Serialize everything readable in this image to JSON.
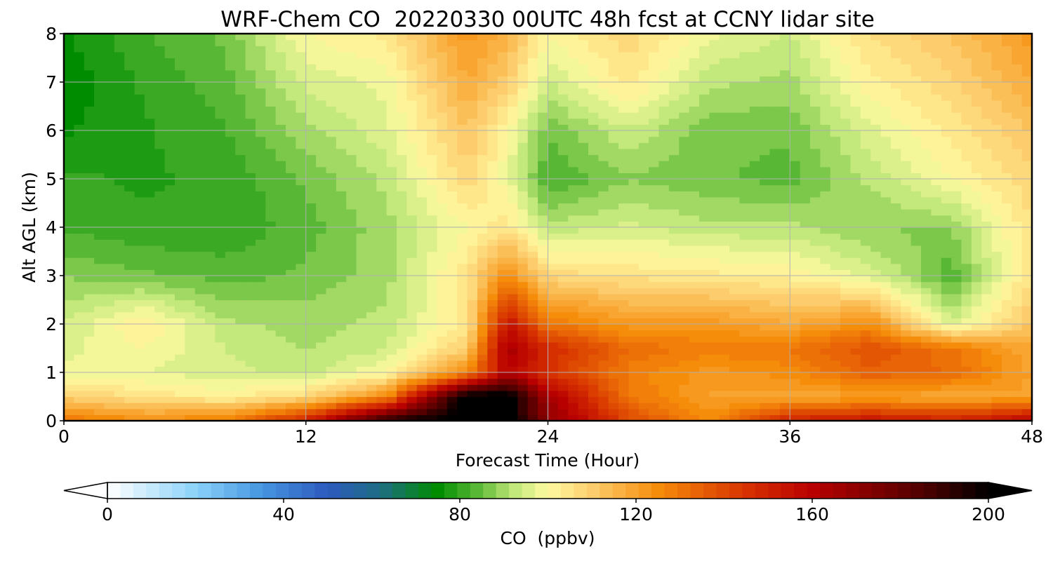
{
  "chart_data": {
    "type": "heatmap",
    "title": "WRF-Chem CO  20220330 00UTC 48h fcst at CCNY lidar site",
    "xlabel": "Forecast Time (Hour)",
    "ylabel": "Alt AGL (km)",
    "xlim": [
      0,
      48
    ],
    "ylim": [
      0,
      8
    ],
    "xticks": [
      0,
      12,
      24,
      36,
      48
    ],
    "yticks": [
      0,
      1,
      2,
      3,
      4,
      5,
      6,
      7,
      8
    ],
    "grid": true,
    "colorbar": {
      "label": "CO  (ppbv)",
      "range": [
        0,
        200
      ],
      "ticks": [
        0,
        40,
        80,
        120,
        160,
        200
      ],
      "extend": "both",
      "orientation": "horizontal",
      "position": "bottom"
    },
    "x": [
      0,
      4,
      8,
      12,
      16,
      20,
      22,
      24,
      28,
      32,
      36,
      40,
      44,
      48
    ],
    "y": [
      0,
      0.5,
      1,
      1.5,
      2,
      3,
      4,
      5,
      6,
      7,
      8
    ],
    "z": [
      [
        130,
        125,
        128,
        150,
        195,
        205,
        205,
        170,
        140,
        125,
        150,
        155,
        150,
        160
      ],
      [
        110,
        105,
        102,
        108,
        125,
        205,
        205,
        165,
        130,
        120,
        118,
        120,
        118,
        120
      ],
      [
        98,
        97,
        95,
        93,
        100,
        125,
        160,
        145,
        128,
        122,
        125,
        135,
        132,
        120
      ],
      [
        96,
        100,
        94,
        91,
        94,
        110,
        165,
        148,
        132,
        128,
        130,
        138,
        130,
        118
      ],
      [
        94,
        103,
        92,
        90,
        92,
        104,
        155,
        130,
        122,
        122,
        118,
        125,
        95,
        112
      ],
      [
        88,
        86,
        84,
        86,
        90,
        105,
        125,
        108,
        105,
        104,
        102,
        96,
        83,
        106
      ],
      [
        82,
        80,
        80,
        84,
        90,
        100,
        105,
        92,
        95,
        92,
        92,
        88,
        88,
        106
      ],
      [
        80,
        79,
        80,
        86,
        92,
        108,
        98,
        82,
        88,
        86,
        84,
        92,
        100,
        108
      ],
      [
        76,
        79,
        82,
        90,
        96,
        112,
        100,
        86,
        94,
        86,
        86,
        96,
        104,
        112
      ],
      [
        74,
        80,
        84,
        95,
        98,
        118,
        110,
        94,
        104,
        92,
        90,
        102,
        108,
        118
      ],
      [
        76,
        82,
        86,
        100,
        104,
        122,
        116,
        100,
        108,
        98,
        94,
        106,
        112,
        122
      ]
    ]
  }
}
